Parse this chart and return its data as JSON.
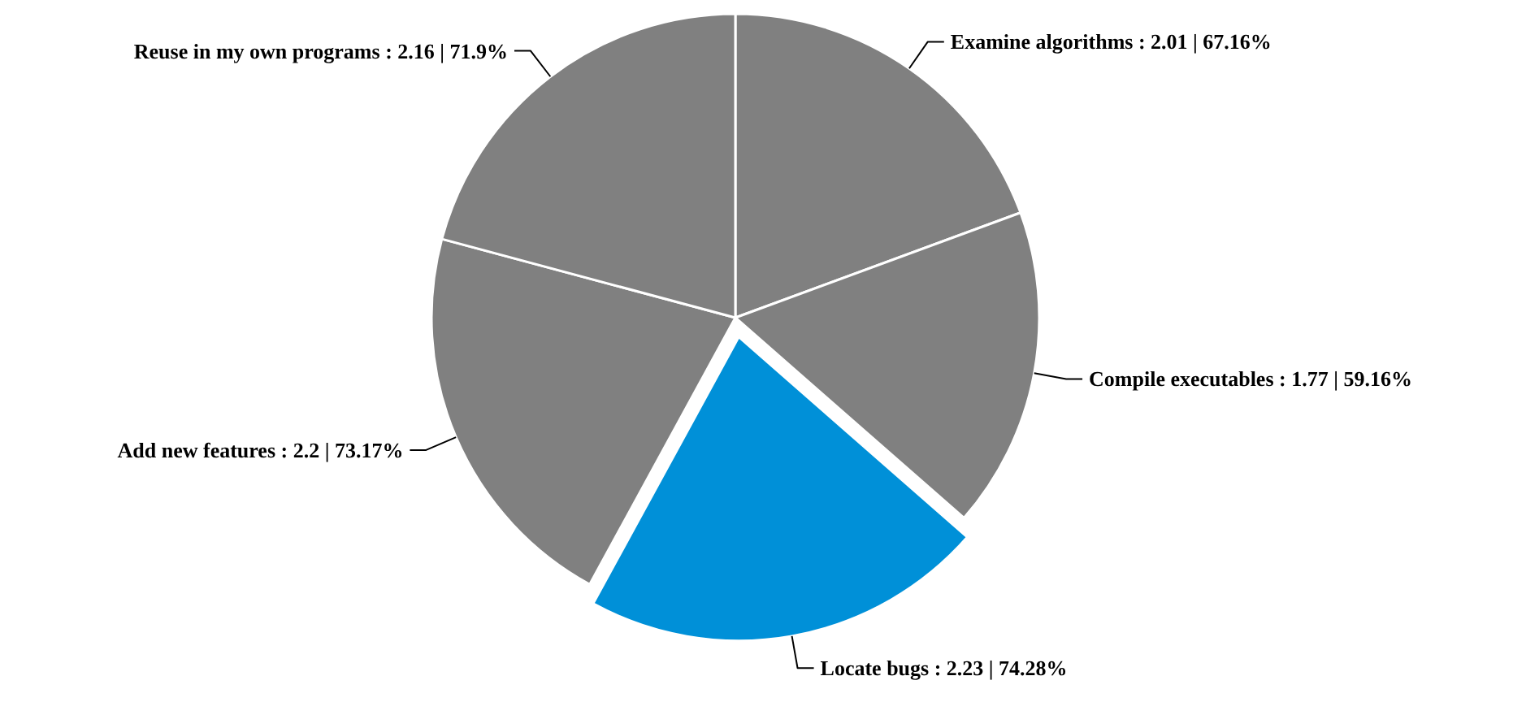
{
  "chart_data": {
    "type": "pie",
    "categories": [
      "Examine algorithms",
      "Compile executables",
      "Locate bugs",
      "Add new features",
      "Reuse in my own programs"
    ],
    "values": [
      2.01,
      1.77,
      2.23,
      2.2,
      2.16
    ],
    "value_labels": [
      "2.01 | 67.16%",
      "1.77 | 59.16%",
      "2.23 | 74.28%",
      "2.2 | 73.17%",
      "2.16 | 71.9%"
    ],
    "colors": [
      "#808080",
      "#808080",
      "#0090d8",
      "#808080",
      "#808080"
    ]
  }
}
